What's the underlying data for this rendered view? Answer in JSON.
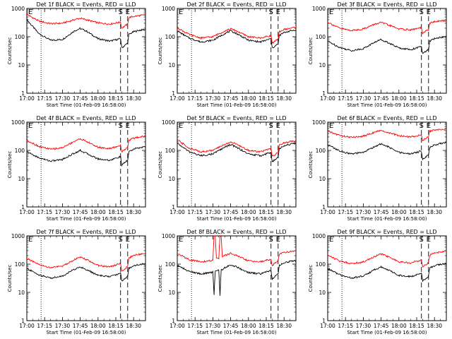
{
  "chart_data": {
    "type": "line",
    "xlabel": "Start Time (01-Feb-09 16:58:00)",
    "ylabel": "Counts/sec",
    "x_tick_labels": [
      "17:00",
      "17:15",
      "17:30",
      "17:45",
      "18:00",
      "18:15",
      "18:30"
    ],
    "x_tick_minutes": [
      0,
      15,
      30,
      45,
      60,
      75,
      90
    ],
    "xlim_minutes": [
      0,
      100
    ],
    "y_scale": "log",
    "ylim": [
      1,
      1000
    ],
    "y_tick_labels": [
      "1",
      "10",
      "100",
      "1000"
    ],
    "y_tick_values": [
      1,
      10,
      100,
      1000
    ],
    "events_color": "#000000",
    "lld_color": "#ff0000",
    "vertical_markers": [
      {
        "minute": 12,
        "style": "dotted",
        "label": ""
      },
      {
        "minute": 79,
        "style": "dashed",
        "label": "S"
      },
      {
        "minute": 85,
        "style": "dashed",
        "label": "E"
      }
    ],
    "panels": [
      {
        "title": "Det 1f BLACK = Events, RED = LLD",
        "series": [
          {
            "name": "Events",
            "color": "#000000",
            "x": [
              0,
              10,
              20,
              30,
              40,
              45,
              50,
              60,
              70,
              79,
              80,
              85,
              86,
              90,
              95,
              100
            ],
            "y": [
              400,
              130,
              75,
              80,
              160,
              195,
              160,
              85,
              70,
              85,
              40,
              60,
              120,
              150,
              170,
              180
            ]
          },
          {
            "name": "LLD",
            "color": "#ff0000",
            "x": [
              0,
              10,
              20,
              30,
              40,
              45,
              50,
              60,
              70,
              79,
              80,
              85,
              86,
              90,
              95,
              100
            ],
            "y": [
              620,
              360,
              290,
              300,
              400,
              450,
              400,
              310,
              280,
              330,
              200,
              280,
              480,
              520,
              560,
              580
            ]
          }
        ]
      },
      {
        "title": "Det 2f BLACK = Events, RED = LLD",
        "series": [
          {
            "name": "Events",
            "color": "#000000",
            "x": [
              0,
              10,
              20,
              30,
              40,
              45,
              50,
              60,
              70,
              79,
              80,
              85,
              86,
              90,
              95,
              100
            ],
            "y": [
              160,
              90,
              65,
              75,
              130,
              160,
              130,
              75,
              65,
              85,
              40,
              55,
              110,
              140,
              160,
              175
            ]
          },
          {
            "name": "LLD",
            "color": "#ff0000",
            "x": [
              0,
              10,
              20,
              30,
              40,
              45,
              50,
              60,
              70,
              79,
              80,
              85,
              86,
              90,
              95,
              100
            ],
            "y": [
              210,
              120,
              90,
              100,
              160,
              190,
              160,
              100,
              90,
              110,
              60,
              80,
              150,
              180,
              200,
              220
            ]
          }
        ]
      },
      {
        "title": "Det 3f BLACK = Events, RED = LLD",
        "series": [
          {
            "name": "Events",
            "color": "#000000",
            "x": [
              0,
              10,
              20,
              30,
              40,
              45,
              50,
              60,
              70,
              79,
              80,
              85,
              86,
              90,
              95,
              100
            ],
            "y": [
              70,
              42,
              32,
              38,
              65,
              80,
              65,
              40,
              35,
              45,
              25,
              35,
              70,
              85,
              95,
              100
            ]
          },
          {
            "name": "LLD",
            "color": "#ff0000",
            "x": [
              0,
              10,
              20,
              30,
              40,
              45,
              50,
              60,
              70,
              79,
              80,
              85,
              86,
              90,
              95,
              100
            ],
            "y": [
              330,
              200,
              165,
              190,
              280,
              320,
              270,
              190,
              175,
              210,
              130,
              180,
              300,
              340,
              360,
              380
            ]
          }
        ]
      },
      {
        "title": "Det 4f BLACK = Events, RED = LLD",
        "series": [
          {
            "name": "Events",
            "color": "#000000",
            "x": [
              0,
              10,
              20,
              30,
              40,
              45,
              50,
              60,
              70,
              79,
              80,
              85,
              86,
              90,
              95,
              100
            ],
            "y": [
              90,
              55,
              42,
              48,
              80,
              100,
              80,
              50,
              45,
              60,
              30,
              45,
              90,
              110,
              125,
              135
            ]
          },
          {
            "name": "LLD",
            "color": "#ff0000",
            "x": [
              0,
              10,
              20,
              30,
              40,
              45,
              50,
              60,
              70,
              79,
              80,
              85,
              86,
              90,
              95,
              100
            ],
            "y": [
              230,
              140,
              110,
              125,
              210,
              260,
              210,
              130,
              115,
              150,
              90,
              130,
              230,
              270,
              300,
              320
            ]
          }
        ]
      },
      {
        "title": "Det 5f BLACK = Events, RED = LLD",
        "series": [
          {
            "name": "Events",
            "color": "#000000",
            "x": [
              0,
              10,
              20,
              30,
              40,
              45,
              50,
              60,
              70,
              79,
              80,
              85,
              86,
              90,
              95,
              100
            ],
            "y": [
              180,
              90,
              65,
              75,
              130,
              160,
              130,
              75,
              65,
              85,
              40,
              55,
              115,
              145,
              165,
              180
            ]
          },
          {
            "name": "LLD",
            "color": "#ff0000",
            "x": [
              0,
              10,
              20,
              30,
              40,
              45,
              50,
              60,
              70,
              79,
              80,
              85,
              86,
              90,
              95,
              100
            ],
            "y": [
              240,
              120,
              90,
              100,
              165,
              200,
              165,
              100,
              90,
              115,
              60,
              85,
              155,
              185,
              205,
              225
            ]
          }
        ]
      },
      {
        "title": "Det 6f BLACK = Events, RED = LLD",
        "series": [
          {
            "name": "Events",
            "color": "#000000",
            "x": [
              0,
              10,
              20,
              30,
              40,
              45,
              50,
              60,
              70,
              79,
              80,
              85,
              86,
              90,
              95,
              100
            ],
            "y": [
              160,
              95,
              75,
              85,
              140,
              170,
              140,
              85,
              75,
              95,
              50,
              70,
              130,
              155,
              175,
              185
            ]
          },
          {
            "name": "LLD",
            "color": "#ff0000",
            "x": [
              0,
              10,
              20,
              30,
              40,
              45,
              50,
              60,
              70,
              79,
              80,
              85,
              86,
              90,
              95,
              100
            ],
            "y": [
              480,
              340,
              290,
              320,
              450,
              500,
              440,
              330,
              300,
              350,
              230,
              300,
              480,
              520,
              550,
              570
            ]
          }
        ]
      },
      {
        "title": "Det 7f BLACK = Events, RED = LLD",
        "series": [
          {
            "name": "Events",
            "color": "#000000",
            "x": [
              0,
              10,
              20,
              30,
              40,
              45,
              50,
              60,
              70,
              79,
              80,
              85,
              86,
              90,
              95,
              100
            ],
            "y": [
              70,
              42,
              32,
              38,
              65,
              80,
              65,
              40,
              36,
              48,
              25,
              38,
              72,
              88,
              98,
              105
            ]
          },
          {
            "name": "LLD",
            "color": "#ff0000",
            "x": [
              0,
              10,
              20,
              30,
              40,
              45,
              50,
              60,
              70,
              79,
              80,
              85,
              86,
              90,
              95,
              100
            ],
            "y": [
              160,
              95,
              75,
              85,
              145,
              175,
              145,
              90,
              80,
              105,
              55,
              85,
              165,
              200,
              225,
              245
            ]
          }
        ]
      },
      {
        "title": "Det 8f BLACK = Events, RED = LLD",
        "series": [
          {
            "name": "Events",
            "color": "#000000",
            "x": [
              0,
              10,
              20,
              30,
              31,
              32,
              33,
              35,
              36,
              37,
              38,
              40,
              45,
              50,
              60,
              70,
              79,
              80,
              85,
              86,
              90,
              95,
              100
            ],
            "y": [
              90,
              55,
              45,
              52,
              8,
              60,
              62,
              62,
              8,
              65,
              65,
              75,
              95,
              80,
              50,
              45,
              60,
              30,
              45,
              90,
              110,
              125,
              135
            ]
          },
          {
            "name": "LLD",
            "color": "#ff0000",
            "x": [
              0,
              10,
              20,
              30,
              31,
              32,
              33,
              35,
              36,
              37,
              38,
              40,
              45,
              50,
              60,
              70,
              79,
              80,
              85,
              86,
              90,
              95,
              100
            ],
            "y": [
              240,
              145,
              120,
              135,
              1000,
              1000,
              160,
              165,
              1000,
              1000,
              175,
              200,
              240,
              200,
              130,
              120,
              150,
              90,
              130,
              230,
              260,
              280,
              300
            ]
          }
        ]
      },
      {
        "title": "Det 9f BLACK = Events, RED = LLD",
        "series": [
          {
            "name": "Events",
            "color": "#000000",
            "x": [
              0,
              10,
              20,
              30,
              40,
              45,
              50,
              60,
              70,
              79,
              80,
              85,
              86,
              90,
              95,
              100
            ],
            "y": [
              70,
              42,
              32,
              38,
              65,
              80,
              65,
              40,
              36,
              48,
              25,
              38,
              72,
              88,
              98,
              105
            ]
          },
          {
            "name": "LLD",
            "color": "#ff0000",
            "x": [
              0,
              10,
              20,
              30,
              40,
              45,
              50,
              60,
              70,
              79,
              80,
              85,
              86,
              90,
              95,
              100
            ],
            "y": [
              210,
              130,
              105,
              120,
              190,
              230,
              190,
              120,
              110,
              140,
              80,
              115,
              210,
              250,
              270,
              290
            ]
          }
        ]
      }
    ]
  }
}
